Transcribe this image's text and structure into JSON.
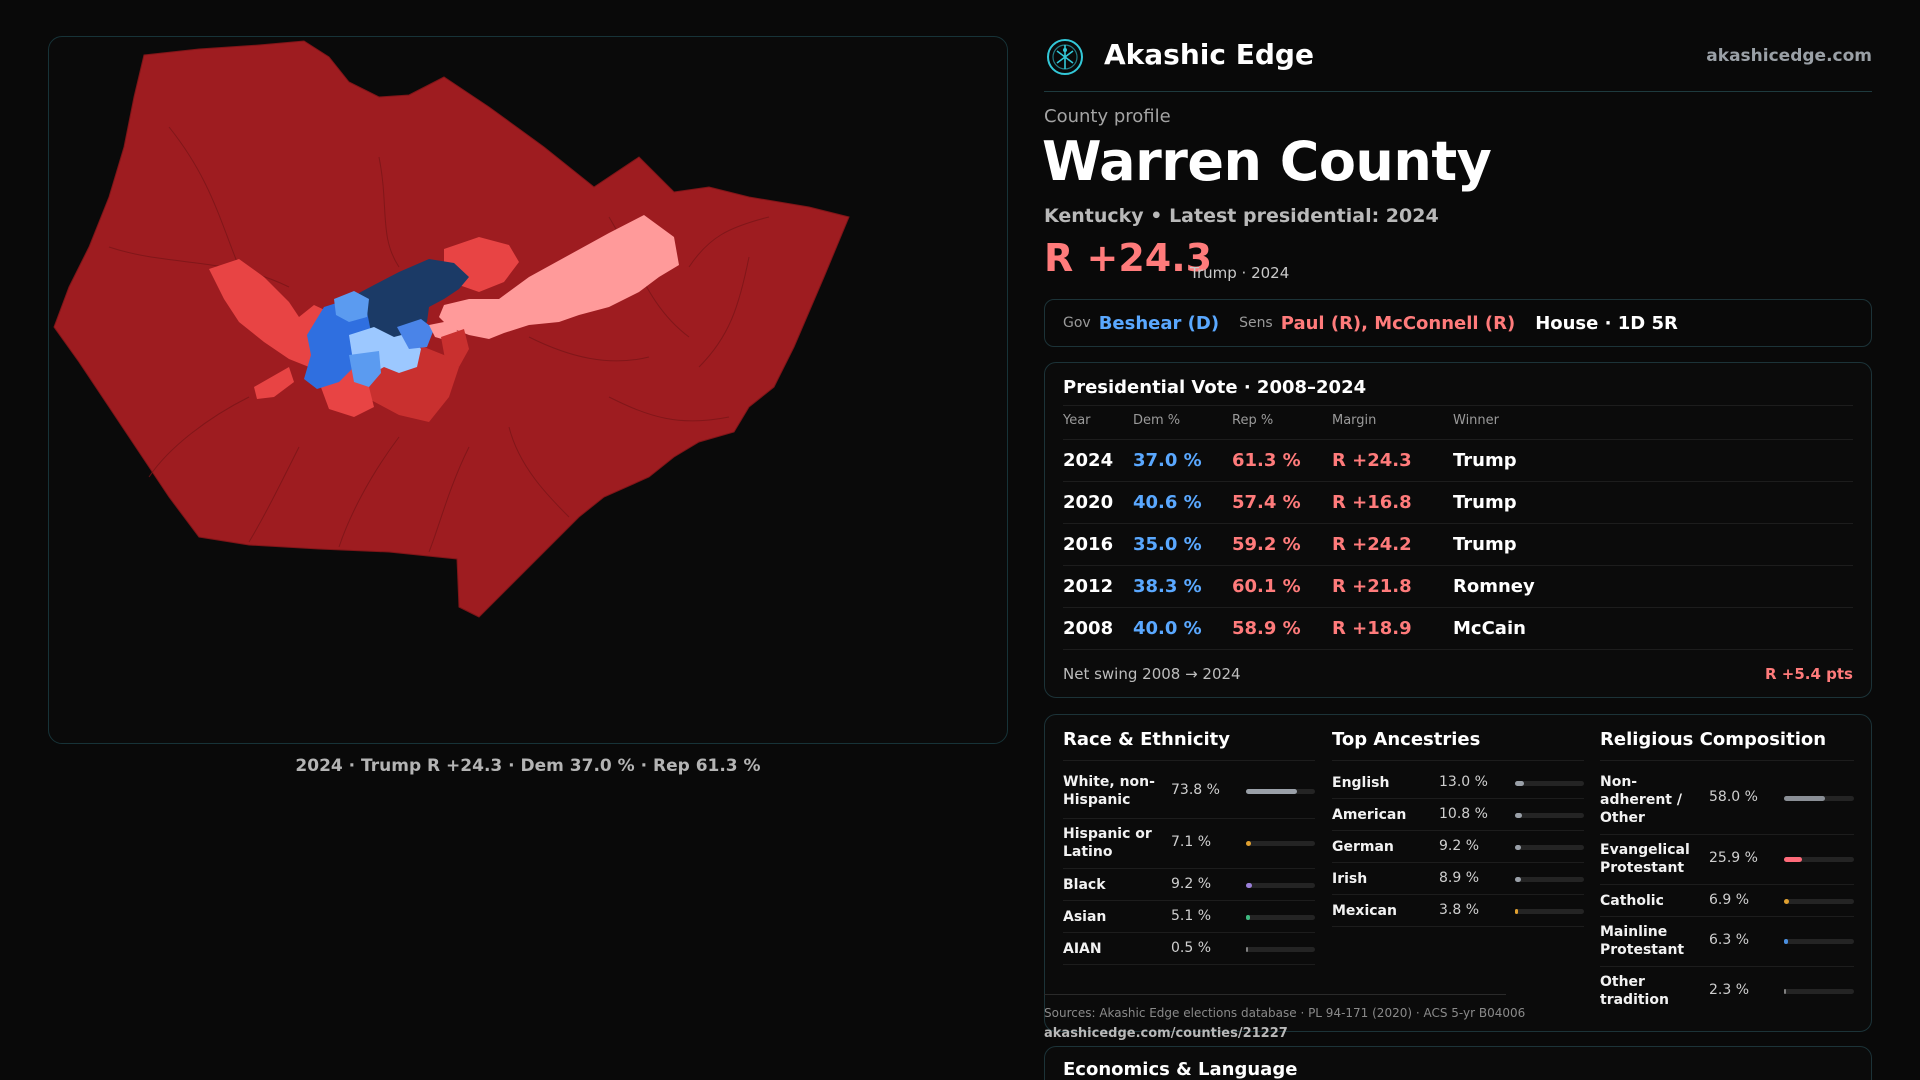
{
  "brand": {
    "name": "Akashic Edge",
    "url": "akashicedge.com",
    "logo": "akashic-edge-logo"
  },
  "profile": {
    "eyebrow": "County profile",
    "title": "Warren County",
    "subtitle": "Kentucky • Latest presidential: 2024",
    "margin": "R +24.3",
    "margin_note": "Trump · 2024"
  },
  "officials": {
    "gov_key": "Gov",
    "gov_val": "Beshear (D)",
    "sens_key": "Sens",
    "sens_val": "Paul (R), McConnell (R)",
    "house": "House · 1D 5R"
  },
  "presidential": {
    "title": "Presidential Vote · 2008–2024",
    "headers": [
      "Year",
      "Dem %",
      "Rep %",
      "Margin",
      "Winner"
    ],
    "rows": [
      {
        "year": "2024",
        "dem": "37.0 %",
        "rep": "61.3 %",
        "margin": "R +24.3",
        "winner": "Trump"
      },
      {
        "year": "2020",
        "dem": "40.6 %",
        "rep": "57.4 %",
        "margin": "R +16.8",
        "winner": "Trump"
      },
      {
        "year": "2016",
        "dem": "35.0 %",
        "rep": "59.2 %",
        "margin": "R +24.2",
        "winner": "Trump"
      },
      {
        "year": "2012",
        "dem": "38.3 %",
        "rep": "60.1 %",
        "margin": "R +21.8",
        "winner": "Romney"
      },
      {
        "year": "2008",
        "dem": "40.0 %",
        "rep": "58.9 %",
        "margin": "R +18.9",
        "winner": "McCain"
      }
    ],
    "swing_label": "Net swing 2008 → 2024",
    "swing_value": "R +5.4 pts"
  },
  "race": {
    "title": "Race & Ethnicity",
    "rows": [
      {
        "label": "White, non-Hispanic",
        "value": "73.8 %",
        "fill": 0.738,
        "color": "#9aa0a8"
      },
      {
        "label": "Hispanic or Latino",
        "value": "7.1 %",
        "fill": 0.071,
        "color": "#e0a030"
      },
      {
        "label": "Black",
        "value": "9.2 %",
        "fill": 0.092,
        "color": "#9a7fd8"
      },
      {
        "label": "Asian",
        "value": "5.1 %",
        "fill": 0.051,
        "color": "#3fb880"
      },
      {
        "label": "AIAN",
        "value": "0.5 %",
        "fill": 0.005,
        "color": "#808080"
      }
    ]
  },
  "ancestry": {
    "title": "Top Ancestries",
    "rows": [
      {
        "label": "English",
        "value": "13.0 %",
        "fill": 0.13,
        "color": "#9aa0a8"
      },
      {
        "label": "American",
        "value": "10.8 %",
        "fill": 0.108,
        "color": "#9aa0a8"
      },
      {
        "label": "German",
        "value": "9.2 %",
        "fill": 0.092,
        "color": "#9aa0a8"
      },
      {
        "label": "Irish",
        "value": "8.9 %",
        "fill": 0.089,
        "color": "#9aa0a8"
      },
      {
        "label": "Mexican",
        "value": "3.8 %",
        "fill": 0.038,
        "color": "#e0a030"
      }
    ]
  },
  "religion": {
    "title": "Religious Composition",
    "rows": [
      {
        "label": "Non-adherent / Other",
        "value": "58.0 %",
        "fill": 0.58,
        "color": "#8a8f96"
      },
      {
        "label": "Evangelical Protestant",
        "value": "25.9 %",
        "fill": 0.259,
        "color": "#ff6b7a"
      },
      {
        "label": "Catholic",
        "value": "6.9 %",
        "fill": 0.069,
        "color": "#e0a030"
      },
      {
        "label": "Mainline Protestant",
        "value": "6.3 %",
        "fill": 0.063,
        "color": "#4a8fe0"
      },
      {
        "label": "Other tradition",
        "value": "2.3 %",
        "fill": 0.023,
        "color": "#808080"
      }
    ]
  },
  "sources": {
    "text": "Sources: Akashic Edge elections database · PL 94-171 (2020) · ACS 5-yr B04006",
    "url": "akashicedge.com/counties/21227"
  },
  "economics": {
    "title": "Economics & Language"
  },
  "map": {
    "caption": "2024 · Trump R +24.3 · Dem 37.0 % · Rep 61.3 %",
    "colors": {
      "strong_r": "#9e1c20",
      "mid_r": "#c9302f",
      "light_r": "#e84444",
      "pale_r": "#ff9a9a",
      "dark_d": "#1b3a66",
      "mid_d": "#2f6fe0",
      "light_d": "#5b9bf0",
      "pale_d": "#9cc8ff"
    }
  },
  "colors": {
    "dem": "#5aa8ff",
    "rep": "#ff7b7b",
    "accent": "#33c8d8"
  }
}
